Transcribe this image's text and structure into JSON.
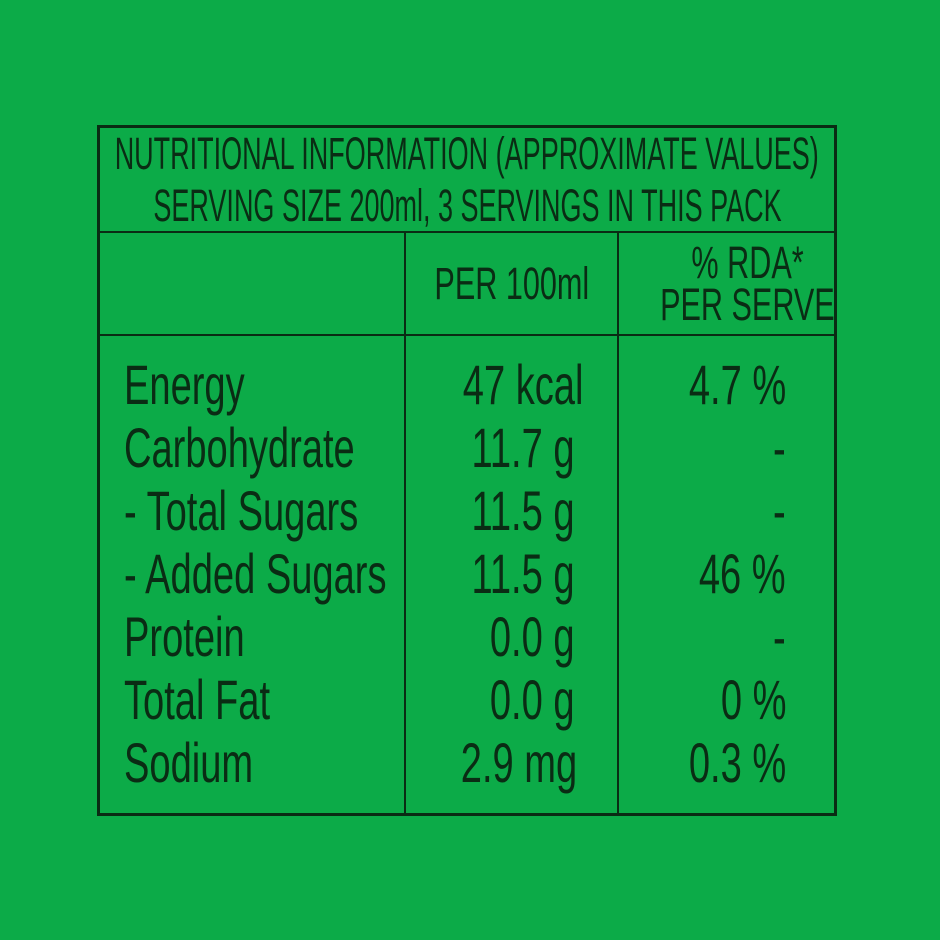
{
  "colors": {
    "background_green": "#0cab48",
    "ink_dark_green": "#0a2c14"
  },
  "nutrition_table": {
    "title_line1": "NUTRITIONAL INFORMATION (APPROXIMATE VALUES)",
    "title_line2": "SERVING SIZE 200ml, 3 SERVINGS IN THIS PACK",
    "column_headers": {
      "nutrient": "",
      "per_100ml": "PER 100ml",
      "rda_line1": "% RDA*",
      "rda_line2": "PER SERVE"
    },
    "rows": [
      {
        "name": "Energy",
        "per_100ml": "47 kcal",
        "rda_per_serve": "4.7 %"
      },
      {
        "name": "Carbohydrate",
        "per_100ml": "11.7 g",
        "rda_per_serve": "-"
      },
      {
        "name": "- Total Sugars",
        "per_100ml": "11.5 g",
        "rda_per_serve": "-"
      },
      {
        "name": "- Added Sugars",
        "per_100ml": "11.5 g",
        "rda_per_serve": "46 %"
      },
      {
        "name": "Protein",
        "per_100ml": "0.0 g",
        "rda_per_serve": "-"
      },
      {
        "name": "Total Fat",
        "per_100ml": "0.0 g",
        "rda_per_serve": "0 %"
      },
      {
        "name": "Sodium",
        "per_100ml": "2.9 mg",
        "rda_per_serve": "0.3 %"
      }
    ]
  }
}
